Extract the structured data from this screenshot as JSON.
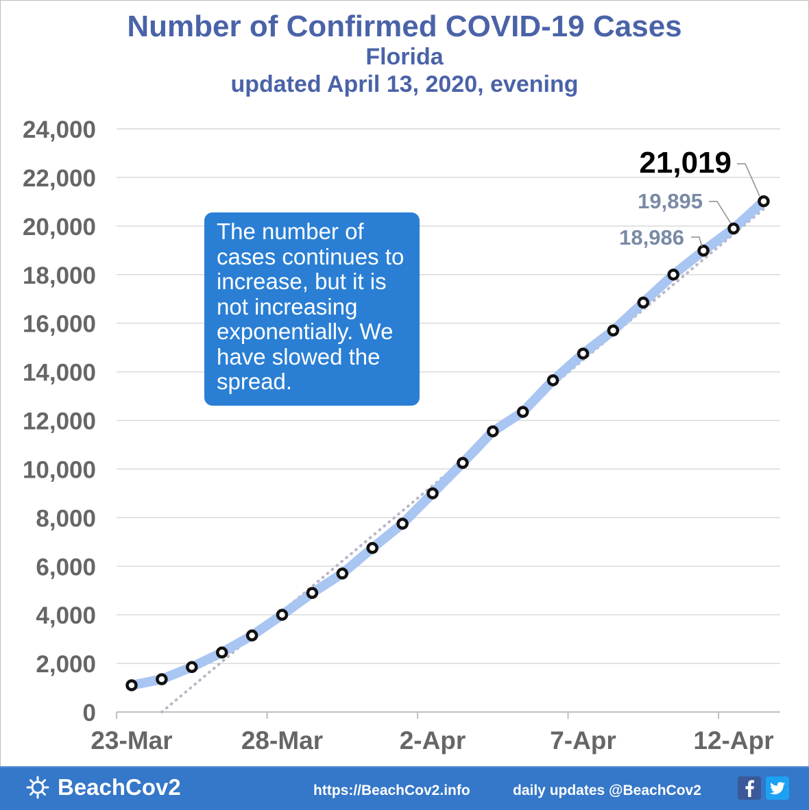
{
  "title": "Number of Confirmed COVID-19 Cases",
  "subtitle": "Florida",
  "updated": "updated April 13, 2020, evening",
  "callout_text": "The number of cases continues to increase, but it is not increasing exponentially. We have slowed the spread.",
  "footer": {
    "brand": "BeachCov2",
    "url": "https://BeachCov2.info",
    "daily": "daily updates @BeachCov2",
    "icons": [
      "sun-icon",
      "facebook-icon",
      "twitter-icon"
    ]
  },
  "colors": {
    "title": "#4a63a8",
    "line": "#a9c5f2",
    "marker": "#111111",
    "trend": "#b8b8c8",
    "callout": "#2a7fd4",
    "footer": "#3577c8",
    "axis_text": "#666666",
    "annotation_gray": "#7a8aa5"
  },
  "chart_data": {
    "type": "line",
    "x": [
      "23-Mar",
      "24-Mar",
      "25-Mar",
      "26-Mar",
      "27-Mar",
      "28-Mar",
      "29-Mar",
      "30-Mar",
      "31-Mar",
      "1-Apr",
      "2-Apr",
      "3-Apr",
      "4-Apr",
      "5-Apr",
      "6-Apr",
      "7-Apr",
      "8-Apr",
      "9-Apr",
      "10-Apr",
      "11-Apr",
      "12-Apr",
      "13-Apr"
    ],
    "series": [
      {
        "values": [
          1100,
          1350,
          1850,
          2450,
          3150,
          4000,
          4900,
          5700,
          6750,
          7750,
          9000,
          10250,
          11550,
          12350,
          13650,
          14750,
          15700,
          16850,
          18000,
          18986,
          19895,
          21019
        ]
      }
    ],
    "trendline": {
      "style": "dotted",
      "from": {
        "x": "24-Mar",
        "y": 0
      },
      "to": {
        "x": "13-Apr",
        "y": 20700
      }
    },
    "xticks": [
      "23-Mar",
      "28-Mar",
      "2-Apr",
      "7-Apr",
      "12-Apr"
    ],
    "yticks": [
      0,
      2000,
      4000,
      6000,
      8000,
      10000,
      12000,
      14000,
      16000,
      18000,
      20000,
      22000,
      24000
    ],
    "ylim": [
      0,
      24000
    ],
    "grid": true,
    "annotations": [
      {
        "x": "13-Apr",
        "text": "21,019",
        "emphasis": "primary"
      },
      {
        "x": "12-Apr",
        "text": "19,895",
        "emphasis": "secondary"
      },
      {
        "x": "11-Apr",
        "text": "18,986",
        "emphasis": "secondary"
      }
    ]
  }
}
